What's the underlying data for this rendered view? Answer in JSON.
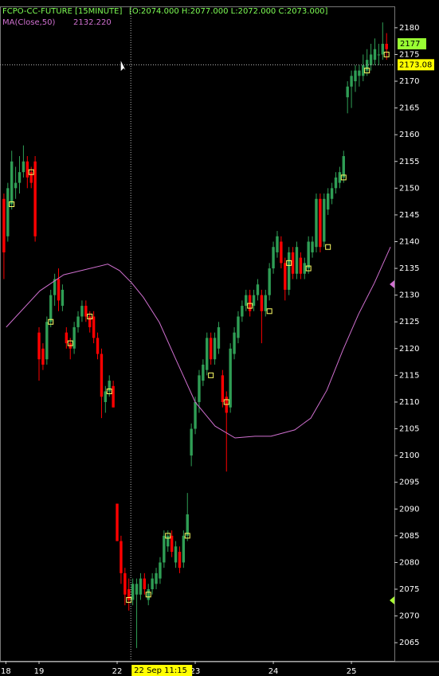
{
  "chart_data": {
    "type": "candlestick",
    "title": "FCPO-CC-FUTURE [15MINUTE]",
    "ohlc_info": "[O:2074.000 H:2077.000 L:2072.000 C:2073.000]",
    "up_color": "#2f9e55",
    "down_color": "#ff0000",
    "x": [
      0,
      1,
      2,
      3,
      4,
      5,
      6,
      7,
      8,
      9,
      10,
      11,
      12,
      13,
      14,
      15,
      16,
      17,
      18,
      19,
      20,
      21,
      22,
      23,
      24,
      25,
      26,
      27,
      28,
      29,
      30,
      31,
      32,
      33,
      34,
      35,
      36,
      37,
      38,
      39,
      40,
      41,
      42,
      43,
      44,
      45,
      46,
      47,
      48,
      49,
      50,
      51,
      52,
      53,
      54,
      55,
      56,
      57,
      58,
      59,
      60,
      61,
      62,
      63,
      64,
      65,
      66,
      67,
      68,
      69,
      70,
      71,
      72,
      73,
      74,
      75,
      76,
      77,
      78,
      79,
      80,
      81,
      82,
      83,
      84,
      85,
      86,
      87,
      88,
      89,
      90,
      91,
      92,
      93,
      94,
      95,
      96,
      97,
      98
    ],
    "open": [
      2148,
      2141,
      2147,
      2150,
      2151,
      2153,
      2155,
      2153,
      2155,
      2123,
      2120,
      2118,
      2125,
      2130,
      2133,
      2128,
      2123,
      2121,
      2120,
      2124,
      2126,
      2128,
      2126,
      2126,
      2122,
      2119,
      2110,
      2112,
      2113,
      2091,
      2084,
      2078,
      2075,
      2073,
      2074,
      2074,
      2077,
      2073,
      2075,
      2076,
      2077,
      2080,
      2083,
      2085,
      2080,
      2082,
      2080,
      2085,
      2100,
      2105,
      2110,
      2114,
      2116,
      2122,
      2118,
      2120,
      2115,
      2111,
      2109,
      2119,
      2122,
      2126,
      2128,
      2130,
      2128,
      2130,
      2130,
      2127,
      2130,
      2135,
      2138,
      2140,
      2136,
      2131,
      2138,
      2134,
      2137,
      2134,
      2135,
      2138,
      2139,
      2148,
      2140,
      2146,
      2148,
      2150,
      2151,
      2152,
      2167,
      2169,
      2170,
      2171,
      2171,
      2172,
      2173,
      2174,
      2175,
      2175,
      2177
    ],
    "high": [
      2149,
      2151,
      2157,
      2154,
      2156,
      2158,
      2156,
      2154,
      2156,
      2124,
      2121,
      2126,
      2131,
      2134,
      2135,
      2132,
      2124,
      2122,
      2125,
      2127,
      2129,
      2129,
      2127,
      2127,
      2123,
      2120,
      2113,
      2115,
      2114,
      2091,
      2085,
      2079,
      2077,
      2077,
      2077,
      2078,
      2078,
      2076,
      2078,
      2079,
      2081,
      2086,
      2086,
      2086,
      2084,
      2083,
      2086,
      2093,
      2106,
      2111,
      2116,
      2118,
      2123,
      2123,
      2123,
      2125,
      2116,
      2112,
      2121,
      2124,
      2127,
      2129,
      2131,
      2131,
      2131,
      2133,
      2131,
      2131,
      2136,
      2140,
      2142,
      2141,
      2137,
      2139,
      2139,
      2140,
      2138,
      2137,
      2141,
      2141,
      2149,
      2149,
      2149,
      2150,
      2151,
      2153,
      2154,
      2157,
      2170,
      2172,
      2173,
      2173,
      2175,
      2176,
      2177,
      2178,
      2177,
      2181,
      2179
    ],
    "low": [
      2133,
      2140,
      2146,
      2148,
      2149,
      2152,
      2150,
      2150,
      2140,
      2114,
      2116,
      2117,
      2124,
      2128,
      2127,
      2127,
      2120,
      2118,
      2119,
      2123,
      2125,
      2125,
      2123,
      2121,
      2118,
      2107,
      2108,
      2111,
      2109,
      2084,
      2076,
      2072,
      2071,
      2072,
      2064,
      2073,
      2074,
      2072,
      2074,
      2075,
      2076,
      2079,
      2082,
      2081,
      2079,
      2078,
      2079,
      2084,
      2098,
      2104,
      2108,
      2113,
      2115,
      2117,
      2117,
      2119,
      2109,
      2097,
      2108,
      2118,
      2121,
      2125,
      2127,
      2126,
      2127,
      2129,
      2121,
      2126,
      2129,
      2134,
      2137,
      2135,
      2129,
      2130,
      2133,
      2133,
      2133,
      2133,
      2134,
      2137,
      2138,
      2138,
      2139,
      2145,
      2147,
      2149,
      2150,
      2151,
      2164,
      2165,
      2168,
      2169,
      2170,
      2171,
      2172,
      2173,
      2173,
      2174,
      2174
    ],
    "close": [
      2138,
      2150,
      2155,
      2151,
      2153,
      2155,
      2152,
      2151,
      2141,
      2118,
      2117,
      2125,
      2130,
      2133,
      2129,
      2131,
      2121,
      2120,
      2124,
      2126,
      2128,
      2126,
      2124,
      2122,
      2119,
      2111,
      2112,
      2114,
      2109,
      2084,
      2078,
      2074,
      2073,
      2076,
      2076,
      2077,
      2075,
      2075,
      2077,
      2078,
      2080,
      2085,
      2085,
      2082,
      2083,
      2079,
      2085,
      2089,
      2105,
      2110,
      2115,
      2117,
      2122,
      2118,
      2122,
      2124,
      2110,
      2108,
      2120,
      2123,
      2126,
      2128,
      2130,
      2127,
      2130,
      2132,
      2127,
      2130,
      2135,
      2139,
      2141,
      2136,
      2131,
      2138,
      2134,
      2139,
      2134,
      2136,
      2140,
      2140,
      2148,
      2139,
      2148,
      2149,
      2150,
      2152,
      2153,
      2156,
      2169,
      2171,
      2172,
      2172,
      2173,
      2174,
      2175,
      2176,
      2175,
      2177,
      2176
    ],
    "ma": {
      "name": "MA(Close,50)",
      "value_label": "2132.220",
      "color": "#d070d0",
      "x": [
        0.6,
        9.2,
        15.3,
        26.6,
        29.6,
        32.7,
        35.7,
        39.8,
        43.9,
        49,
        54.1,
        59.2,
        64.3,
        68.4,
        74.5,
        78.6,
        82.7,
        86.8,
        90.8,
        94.9,
        99
      ],
      "values": [
        2124,
        2130.8,
        2133.8,
        2135.8,
        2134.6,
        2132.3,
        2129.6,
        2124.9,
        2118.2,
        2110,
        2105.5,
        2103.3,
        2103.6,
        2103.6,
        2104.8,
        2107,
        2112.2,
        2119.7,
        2126.4,
        2132.3,
        2139
      ]
    },
    "markers": {
      "color": "#ffff66",
      "x": [
        2,
        7,
        12,
        17,
        22,
        27,
        32,
        37,
        42,
        47,
        53,
        57,
        63,
        68,
        73,
        78,
        83,
        87,
        93,
        98
      ],
      "values": [
        2147,
        2153,
        2125,
        2121,
        2126,
        2112,
        2073,
        2074,
        2085,
        2085,
        2115,
        2110,
        2128,
        2127,
        2136,
        2135,
        2139,
        2152,
        2172,
        2175
      ]
    },
    "xlim": [
      -1,
      100
    ],
    "xticks": [
      {
        "value": 0.5,
        "label": "18"
      },
      {
        "value": 9,
        "label": "19"
      },
      {
        "value": 29,
        "label": "22"
      },
      {
        "value": 49,
        "label": "23"
      },
      {
        "value": 69,
        "label": "24"
      },
      {
        "value": 89,
        "label": "25"
      }
    ],
    "ylim": [
      2061.6,
      2184
    ],
    "yticks": [
      2065,
      2070,
      2075,
      2080,
      2085,
      2090,
      2095,
      2100,
      2105,
      2110,
      2115,
      2120,
      2125,
      2130,
      2135,
      2140,
      2145,
      2150,
      2155,
      2160,
      2165,
      2170,
      2175,
      2180
    ],
    "last_price": 2177,
    "crosshair": {
      "x": 32.5,
      "x_label": "22 Sep 11:15",
      "y": 2173.08
    }
  }
}
